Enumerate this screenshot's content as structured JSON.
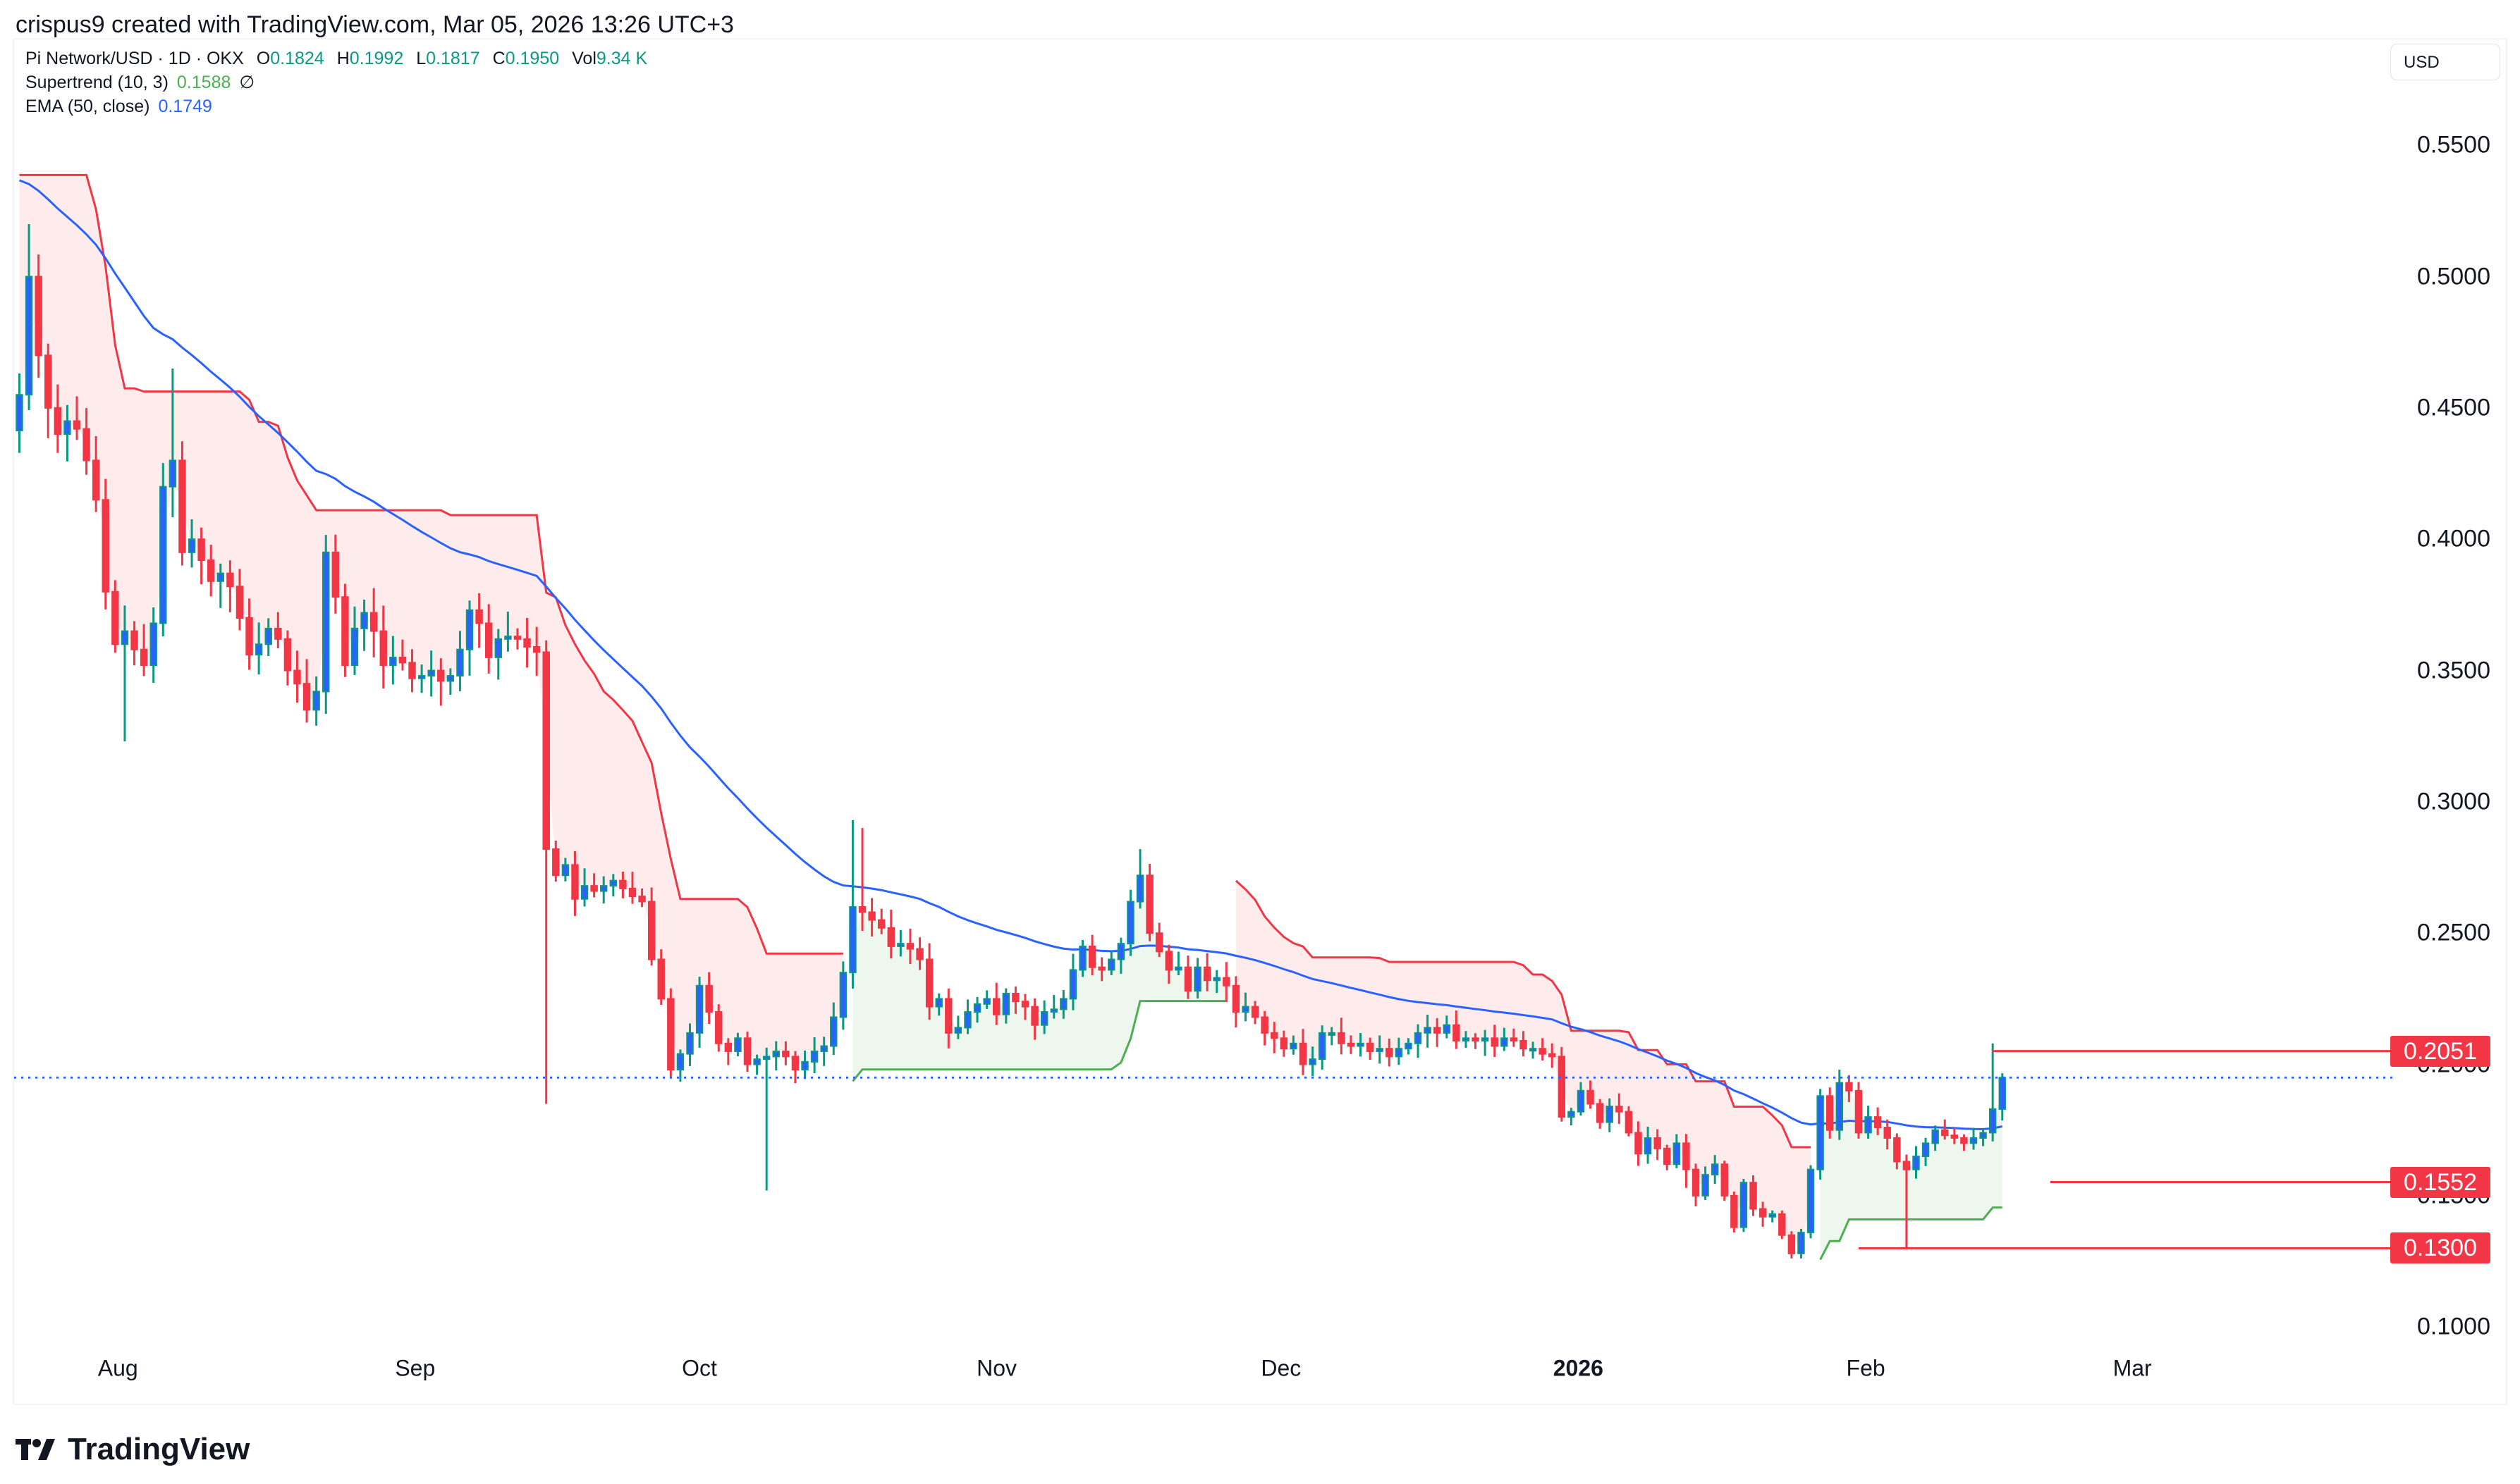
{
  "attribution": "crispus9 created with TradingView.com, Mar 05, 2026 13:26 UTC+3",
  "legend": {
    "symbol": "Pi Network/USD · 1D · OKX",
    "open_key": "O",
    "open": "0.1824",
    "high_key": "H",
    "high": "0.1992",
    "low_key": "L",
    "low": "0.1817",
    "close_key": "C",
    "close": "0.1950",
    "vol_key": "Vol",
    "vol": "9.34 K",
    "supertrend_label": "Supertrend (10, 3)",
    "supertrend_value": "0.1588",
    "supertrend_icon": "∅",
    "ema_label": "EMA (50, close)",
    "ema_value": "0.1749"
  },
  "currency": "USD",
  "brand": "TradingView",
  "colors": {
    "up_body": "#2962ff",
    "up_wick": "#089981",
    "down": "#f23645",
    "ema": "#2962ff",
    "st_up": "#4caf50",
    "st_down": "#f23645",
    "st_up_fill": "rgba(76,175,80,0.10)",
    "st_down_fill": "rgba(242,54,69,0.10)",
    "level": "#f23645",
    "last_price": "#2962ff"
  },
  "chart_data": {
    "type": "candlestick",
    "title": "Pi Network/USD · 1D · OKX",
    "xlabel": "",
    "ylabel": "USD",
    "ylim": [
      0.08,
      0.57
    ],
    "y_ticks": [
      "0.5500",
      "0.5000",
      "0.4500",
      "0.4000",
      "0.3500",
      "0.3000",
      "0.2500",
      "0.2000",
      "0.1500",
      "0.1000"
    ],
    "x_ticks": [
      {
        "label": "Aug",
        "bold": false
      },
      {
        "label": "Sep",
        "bold": false
      },
      {
        "label": "Oct",
        "bold": false
      },
      {
        "label": "Nov",
        "bold": false
      },
      {
        "label": "Dec",
        "bold": false
      },
      {
        "label": "2026",
        "bold": true
      },
      {
        "label": "Feb",
        "bold": false
      },
      {
        "label": "Mar",
        "bold": false
      }
    ],
    "horizontal_levels": [
      {
        "label": "0.2051",
        "value": 0.2051,
        "from_index": 206
      },
      {
        "label": "0.1552",
        "value": 0.1552,
        "from_index": 212
      },
      {
        "label": "0.1300",
        "value": 0.13,
        "from_index": 192
      }
    ],
    "last_price": 0.195,
    "indicators": {
      "supertrend": {
        "period": 10,
        "multiplier": 3,
        "last": 0.1588
      },
      "ema": {
        "length": 50,
        "source": "close",
        "last": 0.1749
      }
    },
    "closes": [
      0.455,
      0.5,
      0.47,
      0.45,
      0.44,
      0.445,
      0.442,
      0.43,
      0.415,
      0.38,
      0.36,
      0.365,
      0.358,
      0.352,
      0.368,
      0.42,
      0.43,
      0.395,
      0.4,
      0.392,
      0.384,
      0.387,
      0.382,
      0.37,
      0.356,
      0.36,
      0.366,
      0.362,
      0.35,
      0.345,
      0.335,
      0.342,
      0.395,
      0.378,
      0.352,
      0.366,
      0.372,
      0.365,
      0.352,
      0.355,
      0.353,
      0.347,
      0.348,
      0.35,
      0.346,
      0.348,
      0.358,
      0.373,
      0.368,
      0.355,
      0.362,
      0.363,
      0.362,
      0.359,
      0.357,
      0.282,
      0.272,
      0.276,
      0.263,
      0.268,
      0.266,
      0.268,
      0.27,
      0.267,
      0.264,
      0.262,
      0.24,
      0.225,
      0.198,
      0.204,
      0.212,
      0.23,
      0.22,
      0.208,
      0.205,
      0.21,
      0.2,
      0.202,
      0.203,
      0.205,
      0.203,
      0.198,
      0.201,
      0.205,
      0.207,
      0.218,
      0.235,
      0.26,
      0.258,
      0.255,
      0.252,
      0.245,
      0.246,
      0.244,
      0.24,
      0.222,
      0.225,
      0.212,
      0.214,
      0.22,
      0.223,
      0.225,
      0.219,
      0.227,
      0.224,
      0.222,
      0.215,
      0.22,
      0.221,
      0.225,
      0.236,
      0.245,
      0.237,
      0.236,
      0.24,
      0.246,
      0.262,
      0.272,
      0.25,
      0.243,
      0.236,
      0.237,
      0.228,
      0.237,
      0.232,
      0.233,
      0.23,
      0.22,
      0.222,
      0.218,
      0.212,
      0.21,
      0.206,
      0.208,
      0.2,
      0.202,
      0.212,
      0.212,
      0.208,
      0.207,
      0.208,
      0.205,
      0.206,
      0.203,
      0.206,
      0.208,
      0.212,
      0.214,
      0.212,
      0.215,
      0.209,
      0.21,
      0.209,
      0.21,
      0.207,
      0.21,
      0.209,
      0.206,
      0.206,
      0.204,
      0.203,
      0.18,
      0.182,
      0.19,
      0.185,
      0.178,
      0.184,
      0.182,
      0.174,
      0.166,
      0.172,
      0.168,
      0.162,
      0.17,
      0.16,
      0.15,
      0.158,
      0.162,
      0.15,
      0.138,
      0.155,
      0.145,
      0.142,
      0.143,
      0.135,
      0.128,
      0.136,
      0.16,
      0.188,
      0.175,
      0.193,
      0.19,
      0.174,
      0.18,
      0.176,
      0.172,
      0.163,
      0.16,
      0.165,
      0.17,
      0.175,
      0.173,
      0.172,
      0.17,
      0.172,
      0.174,
      0.183,
      0.195
    ]
  }
}
